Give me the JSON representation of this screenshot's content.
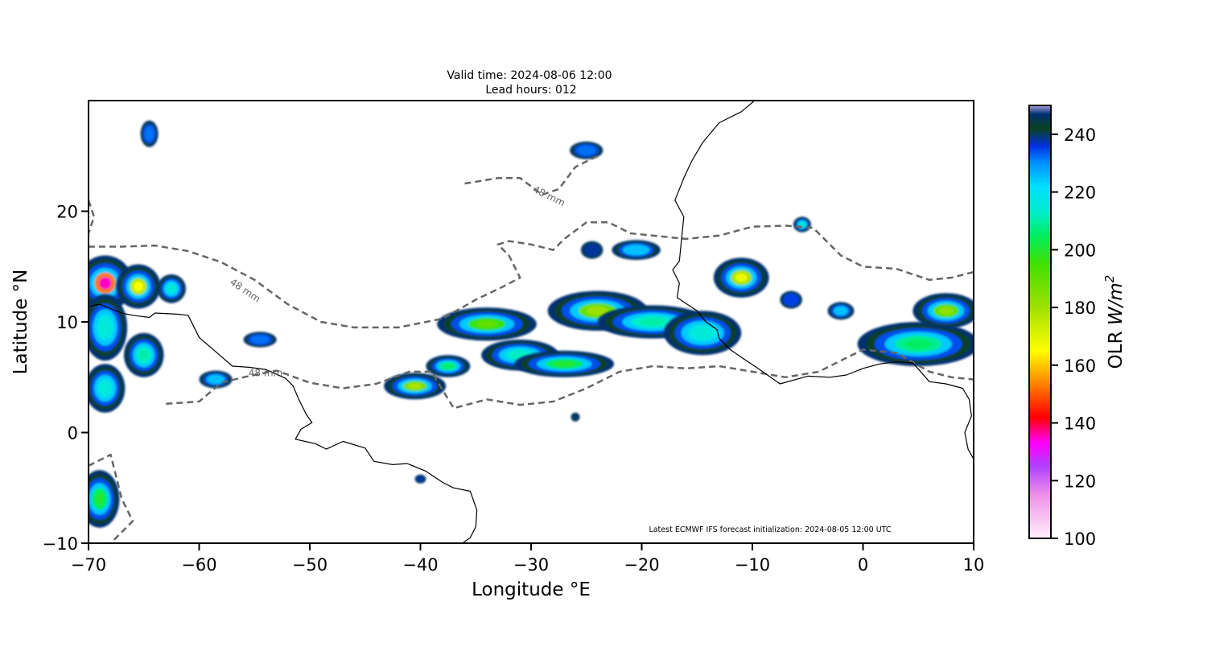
{
  "title": {
    "line1": "Valid time: 2024-08-06 12:00",
    "line2": "Lead hours: 012"
  },
  "axes": {
    "xlabel": "Longitude °E",
    "ylabel": "Latitude °N",
    "xlim": [
      -70,
      10
    ],
    "ylim": [
      -10,
      30
    ],
    "xticks": [
      -70,
      -60,
      -50,
      -40,
      -30,
      -20,
      -10,
      0,
      10
    ],
    "yticks": [
      -10,
      0,
      10,
      20
    ],
    "xtick_labels": [
      "−70",
      "−60",
      "−50",
      "−40",
      "−30",
      "−20",
      "−10",
      "0",
      "10"
    ],
    "ytick_labels": [
      "−10",
      "0",
      "10",
      "20"
    ]
  },
  "colorbar": {
    "label_text": "OLR ",
    "label_math": "W/m",
    "label_sup": "2",
    "min": 100,
    "max": 250,
    "ticks": [
      100,
      120,
      140,
      160,
      180,
      200,
      220,
      240
    ],
    "stops": [
      {
        "v": 100,
        "c": "#fff0fb"
      },
      {
        "v": 115,
        "c": "#ee90e8"
      },
      {
        "v": 125,
        "c": "#b040ff"
      },
      {
        "v": 133,
        "c": "#ff00ff"
      },
      {
        "v": 142,
        "c": "#ff0000"
      },
      {
        "v": 152,
        "c": "#ff7000"
      },
      {
        "v": 165,
        "c": "#ffff00"
      },
      {
        "v": 180,
        "c": "#a0e000"
      },
      {
        "v": 195,
        "c": "#40e000"
      },
      {
        "v": 205,
        "c": "#00ee60"
      },
      {
        "v": 213,
        "c": "#00eecc"
      },
      {
        "v": 222,
        "c": "#00ddff"
      },
      {
        "v": 230,
        "c": "#0090ff"
      },
      {
        "v": 236,
        "c": "#0030e0"
      },
      {
        "v": 242,
        "c": "#0a4020"
      },
      {
        "v": 247,
        "c": "#003070"
      },
      {
        "v": 250,
        "c": "#b0a0e0"
      }
    ]
  },
  "contour_label": "48 mm",
  "footnote": "Latest ECMWF IFS forecast initialization: 2024-08-05 12:00 UTC",
  "cloud_clusters": [
    {
      "lon": -68.5,
      "lat": 13.5,
      "rx": 2.5,
      "ry": 2.5,
      "core": 135
    },
    {
      "lon": -65.5,
      "lat": 13.2,
      "rx": 2.0,
      "ry": 2.0,
      "core": 165
    },
    {
      "lon": -62.5,
      "lat": 13.0,
      "rx": 1.3,
      "ry": 1.3,
      "core": 215
    },
    {
      "lon": -68.5,
      "lat": 9.5,
      "rx": 2.0,
      "ry": 3.0,
      "core": 215
    },
    {
      "lon": -65.0,
      "lat": 7.0,
      "rx": 1.8,
      "ry": 2.0,
      "core": 210
    },
    {
      "lon": -68.5,
      "lat": 4.0,
      "rx": 1.8,
      "ry": 2.2,
      "core": 215
    },
    {
      "lon": -64.5,
      "lat": 27.0,
      "rx": 0.8,
      "ry": 1.2,
      "core": 232
    },
    {
      "lon": -58.5,
      "lat": 4.8,
      "rx": 1.5,
      "ry": 0.8,
      "core": 225
    },
    {
      "lon": -54.5,
      "lat": 8.4,
      "rx": 1.5,
      "ry": 0.7,
      "core": 232
    },
    {
      "lon": -69.0,
      "lat": -6.0,
      "rx": 1.8,
      "ry": 2.6,
      "core": 200
    },
    {
      "lon": -40.5,
      "lat": 4.2,
      "rx": 2.8,
      "ry": 1.2,
      "core": 178
    },
    {
      "lon": -37.5,
      "lat": 6.0,
      "rx": 2.0,
      "ry": 1.0,
      "core": 205
    },
    {
      "lon": -34.0,
      "lat": 9.8,
      "rx": 4.5,
      "ry": 1.5,
      "core": 190
    },
    {
      "lon": -31.0,
      "lat": 7.0,
      "rx": 3.5,
      "ry": 1.4,
      "core": 212
    },
    {
      "lon": -27.0,
      "lat": 6.2,
      "rx": 4.5,
      "ry": 1.2,
      "core": 200
    },
    {
      "lon": -24.0,
      "lat": 11.0,
      "rx": 4.5,
      "ry": 1.8,
      "core": 180
    },
    {
      "lon": -19.0,
      "lat": 10.0,
      "rx": 5.0,
      "ry": 1.5,
      "core": 210
    },
    {
      "lon": -14.5,
      "lat": 9.0,
      "rx": 3.5,
      "ry": 2.0,
      "core": 215
    },
    {
      "lon": -11.0,
      "lat": 14.0,
      "rx": 2.5,
      "ry": 1.8,
      "core": 168
    },
    {
      "lon": -20.5,
      "lat": 16.5,
      "rx": 2.2,
      "ry": 0.9,
      "core": 225
    },
    {
      "lon": -24.5,
      "lat": 16.5,
      "rx": 1.0,
      "ry": 0.8,
      "core": 238
    },
    {
      "lon": -25.0,
      "lat": 25.5,
      "rx": 1.5,
      "ry": 0.8,
      "core": 232
    },
    {
      "lon": -5.5,
      "lat": 18.8,
      "rx": 0.8,
      "ry": 0.7,
      "core": 215
    },
    {
      "lon": -2.0,
      "lat": 11.0,
      "rx": 1.2,
      "ry": 0.8,
      "core": 225
    },
    {
      "lon": -6.5,
      "lat": 12.0,
      "rx": 1.0,
      "ry": 0.8,
      "core": 235
    },
    {
      "lon": 5.0,
      "lat": 8.0,
      "rx": 5.5,
      "ry": 2.0,
      "core": 205
    },
    {
      "lon": 7.5,
      "lat": 11.0,
      "rx": 3.0,
      "ry": 1.6,
      "core": 182
    },
    {
      "lon": -40.0,
      "lat": -4.2,
      "rx": 0.5,
      "ry": 0.4,
      "core": 238
    },
    {
      "lon": -26.0,
      "lat": 1.4,
      "rx": 0.4,
      "ry": 0.4,
      "core": 240
    }
  ],
  "rain_contours": [
    [
      [
        -70,
        16.8
      ],
      [
        -67,
        16.8
      ],
      [
        -64,
        16.9
      ],
      [
        -61,
        16.4
      ],
      [
        -58,
        15.4
      ],
      [
        -55,
        13.8
      ],
      [
        -52,
        11.6
      ],
      [
        -49,
        10.0
      ],
      [
        -46,
        9.5
      ],
      [
        -42,
        9.5
      ],
      [
        -38,
        10.3
      ],
      [
        -35,
        12.0
      ],
      [
        -32.5,
        13.2
      ],
      [
        -31,
        14.0
      ],
      [
        -32,
        16.0
      ],
      [
        -33,
        17.0
      ],
      [
        -32,
        17.3
      ],
      [
        -30,
        17.0
      ],
      [
        -28,
        16.5
      ],
      [
        -27,
        17.5
      ],
      [
        -25,
        19.0
      ],
      [
        -23,
        19.0
      ],
      [
        -21,
        18.0
      ],
      [
        -19,
        17.8
      ],
      [
        -16,
        17.5
      ],
      [
        -13,
        17.8
      ],
      [
        -10,
        18.6
      ],
      [
        -7,
        18.7
      ],
      [
        -4.5,
        18.5
      ],
      [
        -3.5,
        17.5
      ],
      [
        -2,
        16.0
      ],
      [
        0,
        15.0
      ],
      [
        3,
        14.8
      ],
      [
        6,
        13.8
      ],
      [
        8,
        14.0
      ],
      [
        10,
        14.5
      ]
    ],
    [
      [
        -63,
        2.6
      ],
      [
        -60,
        2.8
      ],
      [
        -58,
        4.5
      ],
      [
        -56,
        5.0
      ],
      [
        -53,
        5.6
      ],
      [
        -50,
        4.5
      ],
      [
        -47,
        4.0
      ],
      [
        -44,
        4.4
      ],
      [
        -41,
        5.5
      ],
      [
        -39,
        5.5
      ],
      [
        -37,
        2.2
      ],
      [
        -34,
        3.0
      ],
      [
        -31,
        2.5
      ],
      [
        -28,
        2.8
      ],
      [
        -25,
        4.0
      ],
      [
        -22,
        5.5
      ],
      [
        -19,
        6.0
      ],
      [
        -16,
        5.8
      ],
      [
        -13,
        6.0
      ],
      [
        -10,
        5.5
      ],
      [
        -7,
        5.0
      ],
      [
        -4,
        5.5
      ],
      [
        -2,
        6.5
      ],
      [
        0,
        7.5
      ],
      [
        3,
        7.2
      ],
      [
        6,
        5.5
      ],
      [
        8,
        5.0
      ],
      [
        10,
        4.8
      ]
    ],
    [
      [
        -36,
        22.5
      ],
      [
        -33,
        23.0
      ],
      [
        -31,
        23.0
      ],
      [
        -29,
        21.5
      ],
      [
        -27.5,
        22.0
      ],
      [
        -26,
        24.0
      ],
      [
        -24,
        25.0
      ]
    ],
    [
      [
        -70,
        21.0
      ],
      [
        -69.5,
        19.5
      ],
      [
        -70,
        18.0
      ]
    ],
    [
      [
        -70,
        -3.0
      ],
      [
        -68,
        -2.0
      ],
      [
        -67,
        -6.0
      ],
      [
        -66,
        -8.0
      ],
      [
        -68,
        -10.0
      ]
    ]
  ],
  "contour_labels": [
    {
      "lon": -56.0,
      "lat": 12.6,
      "angle": 34
    },
    {
      "lon": -28.5,
      "lat": 21.1,
      "angle": 26
    },
    {
      "lon": -54.0,
      "lat": 5.1,
      "angle": 0
    }
  ],
  "coastlines": [
    [
      [
        -54.8,
        30
      ],
      [
        -20,
        30
      ],
      [
        -9.8,
        30
      ],
      [
        -11,
        29
      ],
      [
        -13,
        28
      ],
      [
        -14.5,
        26.2
      ],
      [
        -15.5,
        24.5
      ],
      [
        -16.2,
        23
      ],
      [
        -17,
        21
      ],
      [
        -16.2,
        19.5
      ],
      [
        -16.4,
        17.5
      ],
      [
        -16.6,
        15.5
      ],
      [
        -17.2,
        14.7
      ],
      [
        -16.6,
        13.5
      ],
      [
        -16.8,
        12.2
      ],
      [
        -15,
        11
      ],
      [
        -14.2,
        10.0
      ],
      [
        -13.2,
        9.3
      ],
      [
        -13,
        8.5
      ],
      [
        -12,
        7.5
      ],
      [
        -11,
        6.8
      ],
      [
        -9.5,
        5.8
      ],
      [
        -7.5,
        4.4
      ],
      [
        -5,
        5.1
      ],
      [
        -3,
        5.0
      ],
      [
        -1.5,
        5.2
      ],
      [
        0,
        5.8
      ],
      [
        1.5,
        6.2
      ],
      [
        3,
        6.4
      ],
      [
        4.5,
        6.3
      ],
      [
        6,
        4.6
      ],
      [
        7.5,
        4.4
      ],
      [
        9,
        4.0
      ],
      [
        9.6,
        3.0
      ],
      [
        9.8,
        1.5
      ],
      [
        9.2,
        0
      ],
      [
        9.5,
        -1.5
      ],
      [
        10,
        -2.4
      ]
    ],
    [
      [
        -64,
        10.8
      ],
      [
        -62,
        10.7
      ],
      [
        -61,
        10.6
      ],
      [
        -60,
        8.6
      ],
      [
        -58.5,
        7.3
      ],
      [
        -57,
        6.0
      ],
      [
        -55.5,
        5.9
      ],
      [
        -54,
        5.7
      ],
      [
        -52.2,
        4.9
      ],
      [
        -51.5,
        4.2
      ],
      [
        -51,
        3.0
      ],
      [
        -50.3,
        1.6
      ],
      [
        -49.8,
        0.9
      ],
      [
        -50.8,
        0.3
      ],
      [
        -51.3,
        -0.6
      ],
      [
        -49.5,
        -1.0
      ],
      [
        -48.5,
        -1.5
      ],
      [
        -47,
        -0.8
      ],
      [
        -45,
        -1.4
      ],
      [
        -44.2,
        -2.6
      ],
      [
        -42.5,
        -2.9
      ],
      [
        -41.2,
        -2.8
      ],
      [
        -39.5,
        -3.5
      ],
      [
        -38.0,
        -4.5
      ],
      [
        -37.0,
        -5.0
      ],
      [
        -35.5,
        -5.3
      ],
      [
        -34.9,
        -7.0
      ],
      [
        -35,
        -8.5
      ],
      [
        -35.5,
        -9.5
      ],
      [
        -36.2,
        -10.0
      ]
    ],
    [
      [
        -70,
        11.4
      ],
      [
        -69,
        11.6
      ],
      [
        -68,
        11.2
      ],
      [
        -67,
        10.8
      ],
      [
        -66,
        10.6
      ],
      [
        -64.5,
        10.4
      ],
      [
        -64,
        10.8
      ]
    ]
  ]
}
